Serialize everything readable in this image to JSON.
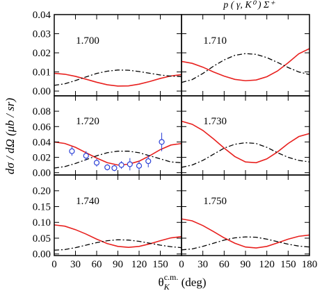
{
  "figure": {
    "title": "p ( γ, K⁰ ) Σ⁺",
    "ylabel": "dσ / dΩ  (μb / sr)",
    "xlabel": {
      "symbol": "θ",
      "sub": "K",
      "sup": "c.m.",
      "unit": " (deg)"
    }
  },
  "chart_data": [
    {
      "type": "line",
      "label": "1.700",
      "x": [
        0,
        15,
        30,
        45,
        60,
        75,
        90,
        105,
        120,
        135,
        150,
        165,
        180
      ],
      "series": [
        {
          "color": "#e8201e",
          "style": "solid",
          "values": [
            0.0093,
            0.0088,
            0.0077,
            0.0062,
            0.0046,
            0.0033,
            0.0026,
            0.0027,
            0.0036,
            0.005,
            0.0066,
            0.0079,
            0.0086
          ]
        },
        {
          "color": "#000000",
          "style": "dashdot",
          "values": [
            0.003,
            0.0038,
            0.0055,
            0.0074,
            0.0092,
            0.0104,
            0.011,
            0.0109,
            0.0102,
            0.0093,
            0.0084,
            0.0078,
            0.0076
          ]
        }
      ],
      "xlim": [
        0,
        180
      ],
      "ylim": [
        -0.0025,
        0.04
      ],
      "xticks": [
        0,
        30,
        60,
        90,
        120,
        150,
        180
      ],
      "yticks": [
        {
          "value": 0,
          "label": "0.00"
        },
        0.01,
        0.02,
        0.03,
        0.04
      ],
      "xtick_labels": false,
      "ytick_labels": true
    },
    {
      "type": "line",
      "label": "1.710",
      "x": [
        0,
        15,
        30,
        45,
        60,
        75,
        90,
        105,
        120,
        135,
        150,
        165,
        180
      ],
      "series": [
        {
          "color": "#e8201e",
          "style": "solid",
          "values": [
            0.0155,
            0.0145,
            0.0125,
            0.01,
            0.0078,
            0.0061,
            0.0054,
            0.0058,
            0.0075,
            0.0105,
            0.0148,
            0.0195,
            0.0222
          ]
        },
        {
          "color": "#000000",
          "style": "dashdot",
          "values": [
            0.0045,
            0.006,
            0.0092,
            0.013,
            0.0163,
            0.0187,
            0.0196,
            0.0192,
            0.0175,
            0.015,
            0.0123,
            0.01,
            0.0086
          ]
        }
      ],
      "xlim": [
        0,
        180
      ],
      "ylim": [
        -0.0025,
        0.04
      ],
      "xticks": [
        0,
        30,
        60,
        90,
        120,
        150,
        180
      ],
      "yticks": [
        0,
        0.01,
        0.02,
        0.03,
        0.04
      ],
      "xtick_labels": false,
      "ytick_labels": false
    },
    {
      "type": "line",
      "label": "1.720",
      "x": [
        0,
        15,
        30,
        45,
        60,
        75,
        90,
        105,
        120,
        135,
        150,
        165,
        180
      ],
      "series": [
        {
          "color": "#e8201e",
          "style": "solid",
          "values": [
            0.04,
            0.038,
            0.033,
            0.026,
            0.019,
            0.013,
            0.01,
            0.011,
            0.015,
            0.022,
            0.03,
            0.036,
            0.038
          ]
        },
        {
          "color": "#000000",
          "style": "dashdot",
          "values": [
            0.006,
            0.008,
            0.012,
            0.017,
            0.022,
            0.026,
            0.028,
            0.028,
            0.026,
            0.022,
            0.018,
            0.014,
            0.013
          ]
        }
      ],
      "points": {
        "color": "#2a3fd6",
        "x": [
          25,
          45,
          60,
          75,
          85,
          95,
          107,
          120,
          133,
          152
        ],
        "values": [
          0.028,
          0.022,
          0.013,
          0.007,
          0.006,
          0.01,
          0.011,
          0.009,
          0.015,
          0.04
        ],
        "errors": [
          0.006,
          0.006,
          0.005,
          0.004,
          0.004,
          0.005,
          0.008,
          0.006,
          0.008,
          0.012
        ]
      },
      "xlim": [
        0,
        180
      ],
      "ylim": [
        -0.003,
        0.1
      ],
      "xticks": [
        0,
        30,
        60,
        90,
        120,
        150,
        180
      ],
      "yticks": [
        {
          "value": 0,
          "label": "0.00"
        },
        0.02,
        0.04,
        0.06,
        0.08
      ],
      "xtick_labels": false,
      "ytick_labels": true
    },
    {
      "type": "line",
      "label": "1.730",
      "x": [
        0,
        15,
        30,
        45,
        60,
        75,
        90,
        105,
        120,
        135,
        150,
        165,
        180
      ],
      "series": [
        {
          "color": "#e8201e",
          "style": "solid",
          "values": [
            0.067,
            0.063,
            0.055,
            0.044,
            0.032,
            0.021,
            0.014,
            0.013,
            0.018,
            0.027,
            0.038,
            0.047,
            0.051
          ]
        },
        {
          "color": "#000000",
          "style": "dashdot",
          "values": [
            0.007,
            0.01,
            0.016,
            0.024,
            0.032,
            0.037,
            0.039,
            0.038,
            0.033,
            0.026,
            0.02,
            0.016,
            0.014
          ]
        }
      ],
      "xlim": [
        0,
        180
      ],
      "ylim": [
        -0.003,
        0.1
      ],
      "xticks": [
        0,
        30,
        60,
        90,
        120,
        150,
        180
      ],
      "yticks": [
        0,
        0.02,
        0.04,
        0.06,
        0.08
      ],
      "xtick_labels": false,
      "ytick_labels": false
    },
    {
      "type": "line",
      "label": "1.740",
      "x": [
        0,
        15,
        30,
        45,
        60,
        75,
        90,
        105,
        120,
        135,
        150,
        165,
        180
      ],
      "series": [
        {
          "color": "#e8201e",
          "style": "solid",
          "values": [
            0.092,
            0.088,
            0.077,
            0.063,
            0.047,
            0.033,
            0.024,
            0.021,
            0.024,
            0.032,
            0.042,
            0.051,
            0.055
          ]
        },
        {
          "color": "#000000",
          "style": "dashdot",
          "values": [
            0.012,
            0.014,
            0.02,
            0.028,
            0.036,
            0.042,
            0.045,
            0.044,
            0.04,
            0.034,
            0.028,
            0.023,
            0.02
          ]
        }
      ],
      "xlim": [
        0,
        180
      ],
      "ylim": [
        -0.005,
        0.25
      ],
      "xticks": [
        0,
        30,
        60,
        90,
        120,
        150
      ],
      "yticks": [
        {
          "value": 0,
          "label": "0.00"
        },
        0.05,
        {
          "value": 0.1,
          "label": "0.10"
        },
        0.15,
        {
          "value": 0.2,
          "label": "0.20"
        }
      ],
      "xtick_labels": true,
      "ytick_labels": true
    },
    {
      "type": "line",
      "label": "1.750",
      "x": [
        0,
        15,
        30,
        45,
        60,
        75,
        90,
        105,
        120,
        135,
        150,
        165,
        180
      ],
      "series": [
        {
          "color": "#e8201e",
          "style": "solid",
          "values": [
            0.111,
            0.105,
            0.09,
            0.071,
            0.051,
            0.034,
            0.022,
            0.019,
            0.024,
            0.035,
            0.047,
            0.056,
            0.06
          ]
        },
        {
          "color": "#000000",
          "style": "dashdot",
          "values": [
            0.013,
            0.016,
            0.024,
            0.034,
            0.044,
            0.051,
            0.054,
            0.053,
            0.047,
            0.039,
            0.031,
            0.025,
            0.022
          ]
        }
      ],
      "xlim": [
        0,
        180
      ],
      "ylim": [
        -0.005,
        0.25
      ],
      "xticks": [
        0,
        30,
        60,
        90,
        120,
        150,
        180
      ],
      "yticks": [
        0,
        0.05,
        0.1,
        0.15,
        0.2
      ],
      "xtick_labels": true,
      "ytick_labels": false
    }
  ]
}
